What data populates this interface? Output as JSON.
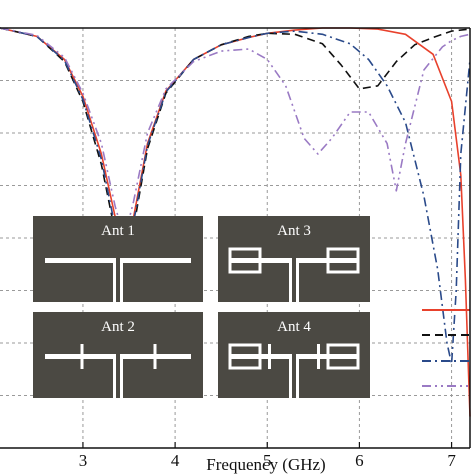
{
  "chart_data": {
    "type": "line",
    "xlabel": "Frequency (GHz)",
    "ylabel": "",
    "xlim": [
      2.1,
      7.2
    ],
    "ylim": [
      -40,
      0
    ],
    "x_ticks": [
      3,
      4,
      5,
      6,
      7
    ],
    "grid": true,
    "legend": "bottom-right",
    "series": [
      {
        "color": "#e8412c",
        "dash": "solid",
        "x": [
          2.1,
          2.5,
          2.8,
          3.0,
          3.2,
          3.35,
          3.45,
          3.55,
          3.7,
          3.9,
          4.2,
          4.5,
          4.8,
          5.0,
          5.3,
          5.6,
          5.9,
          6.2,
          6.5,
          6.8,
          7.0,
          7.1,
          7.15,
          7.2
        ],
        "y": [
          0,
          -0.8,
          -3.0,
          -6.5,
          -12.0,
          -18.0,
          -21.5,
          -18.0,
          -11.0,
          -6.0,
          -3.0,
          -1.6,
          -0.9,
          -0.5,
          -0.2,
          0,
          0,
          -0.1,
          -0.6,
          -2.5,
          -7.0,
          -14.0,
          -24.0,
          -37.0
        ]
      },
      {
        "color": "#111111",
        "dash": "8,5",
        "x": [
          2.1,
          2.5,
          2.8,
          3.0,
          3.2,
          3.35,
          3.45,
          3.55,
          3.7,
          3.9,
          4.2,
          4.5,
          4.8,
          5.0,
          5.3,
          5.6,
          5.8,
          6.0,
          6.2,
          6.4,
          6.6,
          6.8,
          7.0,
          7.2
        ],
        "y": [
          0,
          -0.8,
          -3.2,
          -7.0,
          -13.0,
          -19.5,
          -23.0,
          -19.0,
          -11.5,
          -6.2,
          -3.0,
          -1.6,
          -0.8,
          -0.5,
          -0.6,
          -1.5,
          -3.5,
          -5.8,
          -5.5,
          -3.2,
          -1.6,
          -0.9,
          -0.3,
          -0.1
        ]
      },
      {
        "color": "#2a4a8a",
        "dash": "9,4,2,4",
        "x": [
          2.1,
          2.5,
          2.8,
          3.0,
          3.2,
          3.35,
          3.45,
          3.55,
          3.7,
          3.9,
          4.2,
          4.5,
          4.8,
          5.0,
          5.3,
          5.6,
          5.9,
          6.1,
          6.3,
          6.5,
          6.7,
          6.85,
          6.95,
          7.0,
          7.05,
          7.1,
          7.2
        ],
        "y": [
          0,
          -0.8,
          -3.1,
          -6.8,
          -12.5,
          -19.0,
          -22.0,
          -18.5,
          -11.2,
          -6.1,
          -3.0,
          -1.6,
          -0.9,
          -0.5,
          -0.3,
          -0.6,
          -1.5,
          -3.0,
          -5.5,
          -9.0,
          -16.0,
          -23.0,
          -30.0,
          -32.0,
          -25.0,
          -12.0,
          -3.0
        ]
      },
      {
        "color": "#9a7ac4",
        "dash": "9,4,2,4,2,4",
        "x": [
          2.1,
          2.5,
          2.8,
          3.0,
          3.2,
          3.35,
          3.45,
          3.55,
          3.7,
          3.9,
          4.2,
          4.5,
          4.8,
          5.0,
          5.2,
          5.4,
          5.55,
          5.7,
          5.9,
          6.1,
          6.3,
          6.4,
          6.5,
          6.7,
          6.9,
          7.0,
          7.1,
          7.2
        ],
        "y": [
          0,
          -0.7,
          -2.8,
          -6.2,
          -11.0,
          -17.0,
          -20.0,
          -16.5,
          -10.0,
          -5.8,
          -3.2,
          -2.2,
          -2.0,
          -3.0,
          -5.5,
          -10.5,
          -12.0,
          -10.5,
          -8.0,
          -8.0,
          -11.0,
          -15.5,
          -11.0,
          -4.0,
          -1.8,
          -1.2,
          -0.8,
          -0.6
        ]
      }
    ],
    "inset_panels": [
      {
        "label": "Ant 1"
      },
      {
        "label": "Ant 3"
      },
      {
        "label": "Ant 2"
      },
      {
        "label": "Ant 4"
      }
    ],
    "colors": {
      "panel_bg": "#4b4943",
      "grid": "#9a9a9a"
    }
  }
}
